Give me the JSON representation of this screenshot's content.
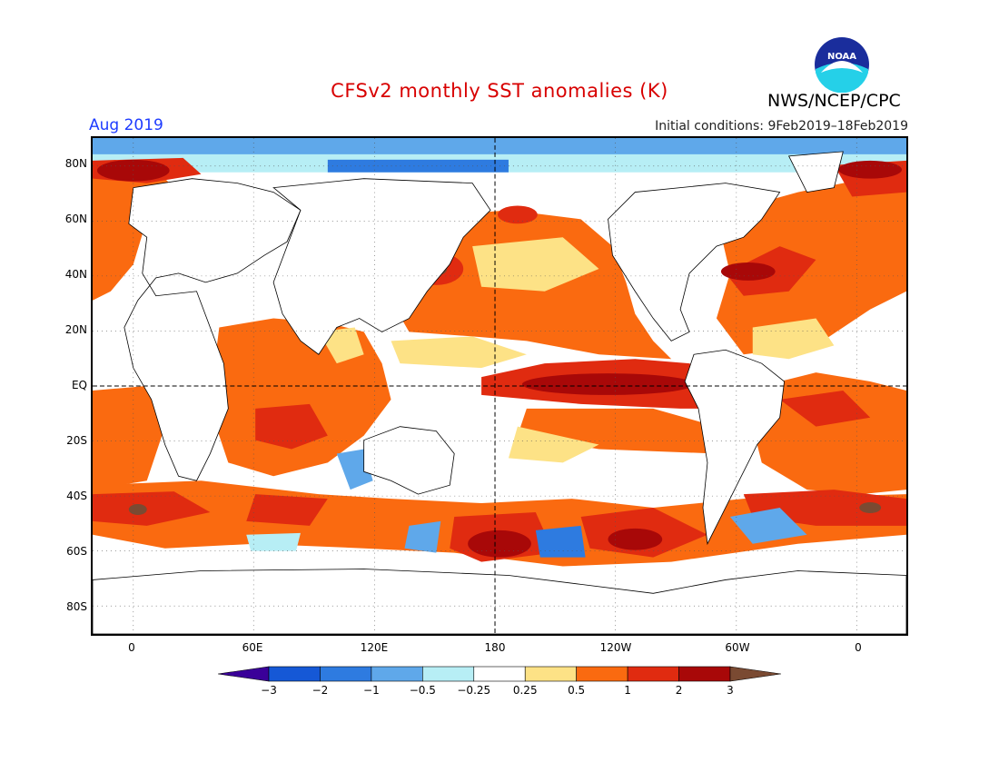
{
  "header": {
    "title": "CFSv2 monthly SST anomalies (K)",
    "period": "Aug 2019",
    "initial_conditions": "Initial conditions: 9Feb2019–18Feb2019",
    "agency": "NWS/NCEP/CPC",
    "logo_text": "NOAA"
  },
  "axes": {
    "lat_labels": [
      "80N",
      "60N",
      "40N",
      "20N",
      "EQ",
      "20S",
      "40S",
      "60S",
      "80S"
    ],
    "lon_labels": [
      "0",
      "60E",
      "120E",
      "180",
      "120W",
      "60W",
      "0"
    ]
  },
  "colorbar": {
    "ticks": [
      "−3",
      "−2",
      "−1",
      "−0.5",
      "−0.25",
      "0.25",
      "0.5",
      "1",
      "2",
      "3"
    ],
    "colors": [
      "#3a0099",
      "#1558d6",
      "#2e7be0",
      "#5fa8ea",
      "#b7eef5",
      "#ffffff",
      "#fde286",
      "#fa6a10",
      "#e02b10",
      "#a80808",
      "#7a4a32"
    ]
  },
  "colors": {
    "title": "#d80000",
    "period": "#1e3cff",
    "land": "#ffffff",
    "warm_moderate": "#fa6a10",
    "warm_strong": "#e02b10",
    "warm_extreme": "#a80808",
    "cool": "#5fa8ea",
    "cool_strong": "#2e7be0"
  }
}
